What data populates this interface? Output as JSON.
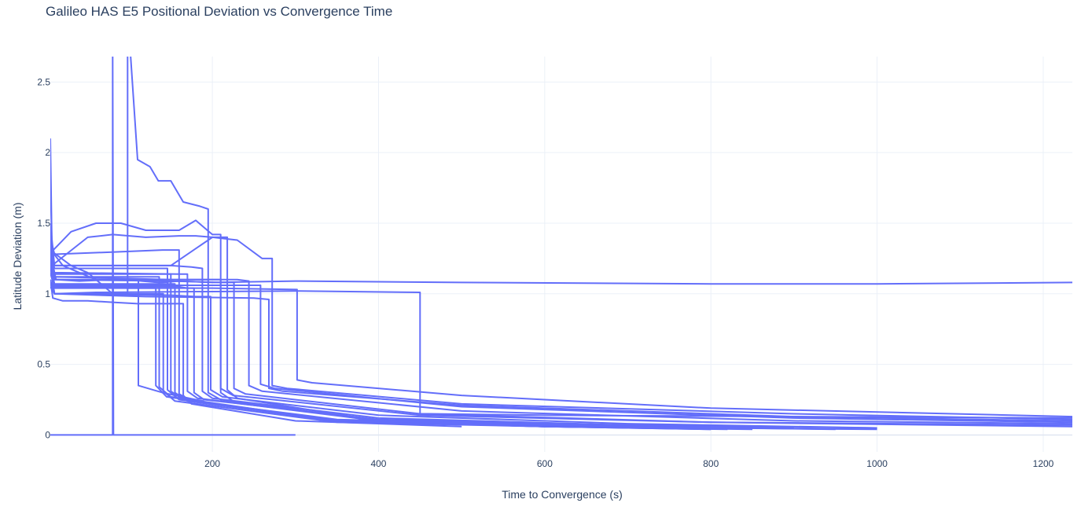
{
  "chart_data": {
    "type": "line",
    "title": "Galileo HAS E5 Positional Deviation vs Convergence Time",
    "xlabel": "Time to Convergence (s)",
    "ylabel": "Latitude Deviation (m)",
    "xlim": [
      5,
      1235
    ],
    "ylim": [
      -0.12,
      2.68
    ],
    "x_ticks": [
      200,
      400,
      600,
      800,
      1000,
      1200
    ],
    "y_ticks": [
      0,
      0.5,
      1,
      1.5,
      2,
      2.5
    ],
    "grid": true,
    "legend": "none",
    "line_color": "#636efa",
    "series": [
      {
        "x": [
          5,
          8,
          12,
          40,
          80,
          100,
          115,
          135,
          140,
          160,
          200,
          300,
          500,
          800,
          1000,
          1235
        ],
        "y": [
          1.45,
          1.2,
          1.1,
          1.09,
          1.1,
          1.1,
          1.09,
          1.08,
          1.08,
          1.09,
          1.08,
          1.09,
          1.08,
          1.07,
          1.07,
          1.08
        ]
      },
      {
        "x": [
          5,
          10,
          60,
          300,
          450,
          450,
          460,
          600,
          900,
          1235
        ],
        "y": [
          1.05,
          1.0,
          1.01,
          1.02,
          1.01,
          0.15,
          0.15,
          0.14,
          0.13,
          0.12
        ]
      },
      {
        "x": [
          5,
          10,
          100,
          200,
          302,
          302,
          320,
          500,
          800,
          1235
        ],
        "y": [
          1.3,
          1.05,
          1.04,
          1.04,
          1.03,
          0.39,
          0.37,
          0.28,
          0.19,
          0.13
        ]
      },
      {
        "x": [
          5,
          10,
          150,
          200,
          230,
          260,
          272,
          272,
          290,
          500,
          900,
          1235
        ],
        "y": [
          1.5,
          1.2,
          1.2,
          1.4,
          1.38,
          1.25,
          1.25,
          0.35,
          0.33,
          0.22,
          0.15,
          0.11
        ]
      },
      {
        "x": [
          5,
          10,
          120,
          250,
          268,
          268,
          285,
          500,
          900,
          1235
        ],
        "y": [
          1.2,
          1.0,
          0.98,
          0.97,
          0.96,
          0.33,
          0.31,
          0.21,
          0.13,
          0.1
        ]
      },
      {
        "x": [
          5,
          10,
          150,
          240,
          258,
          258,
          275,
          500,
          900,
          1235
        ],
        "y": [
          1.15,
          1.06,
          1.06,
          1.06,
          1.06,
          0.36,
          0.33,
          0.2,
          0.12,
          0.09
        ]
      },
      {
        "x": [
          5,
          10,
          150,
          230,
          244,
          244,
          260,
          500,
          900,
          1235
        ],
        "y": [
          1.22,
          1.12,
          1.1,
          1.1,
          1.09,
          0.35,
          0.31,
          0.17,
          0.1,
          0.08
        ]
      },
      {
        "x": [
          5,
          10,
          150,
          210,
          226,
          226,
          240,
          450,
          800,
          1235
        ],
        "y": [
          1.25,
          1.1,
          1.09,
          1.08,
          1.08,
          0.33,
          0.29,
          0.15,
          0.09,
          0.07
        ]
      },
      {
        "x": [
          5,
          10,
          150,
          190,
          210,
          210,
          225,
          450,
          800,
          1235
        ],
        "y": [
          1.3,
          1.1,
          1.1,
          1.1,
          1.1,
          0.33,
          0.28,
          0.14,
          0.09,
          0.06
        ]
      },
      {
        "x": [
          5,
          10,
          150,
          180,
          198,
          198,
          212,
          400,
          700,
          1000
        ],
        "y": [
          1.2,
          1.0,
          0.99,
          0.98,
          0.98,
          0.32,
          0.27,
          0.14,
          0.08,
          0.05
        ]
      },
      {
        "x": [
          5,
          10,
          150,
          175,
          188,
          188,
          200,
          400,
          700,
          1000
        ],
        "y": [
          1.35,
          1.2,
          1.2,
          1.19,
          1.18,
          0.31,
          0.26,
          0.12,
          0.07,
          0.05
        ]
      },
      {
        "x": [
          5,
          10,
          160,
          170,
          178,
          178,
          190,
          400,
          700,
          900
        ],
        "y": [
          1.2,
          1.05,
          1.05,
          1.04,
          1.04,
          0.3,
          0.25,
          0.11,
          0.07,
          0.05
        ]
      },
      {
        "x": [
          5,
          10,
          160,
          165,
          170,
          170,
          182,
          400,
          600,
          800
        ],
        "y": [
          1.3,
          1.15,
          1.14,
          1.14,
          1.14,
          0.31,
          0.26,
          0.1,
          0.07,
          0.05
        ]
      },
      {
        "x": [
          5,
          10,
          100,
          140,
          160,
          160,
          175,
          350,
          600,
          850
        ],
        "y": [
          1.4,
          1.28,
          1.3,
          1.31,
          1.31,
          0.29,
          0.24,
          0.11,
          0.07,
          0.05
        ]
      },
      {
        "x": [
          5,
          10,
          100,
          140,
          155,
          155,
          170,
          350,
          600,
          800
        ],
        "y": [
          1.2,
          1.07,
          1.07,
          1.07,
          1.07,
          0.3,
          0.24,
          0.1,
          0.07,
          0.05
        ]
      },
      {
        "x": [
          5,
          10,
          100,
          140,
          150,
          150,
          165,
          350,
          600,
          850
        ],
        "y": [
          1.25,
          1.14,
          1.14,
          1.14,
          1.14,
          0.31,
          0.25,
          0.1,
          0.07,
          0.05
        ]
      },
      {
        "x": [
          5,
          10,
          100,
          140,
          146,
          146,
          160,
          350,
          600,
          800
        ],
        "y": [
          1.3,
          1.18,
          1.18,
          1.18,
          1.18,
          0.32,
          0.25,
          0.1,
          0.06,
          0.04
        ]
      },
      {
        "x": [
          5,
          10,
          100,
          138,
          141,
          141,
          155,
          350,
          600,
          800
        ],
        "y": [
          1.1,
          1.0,
          1.0,
          1.0,
          1.0,
          0.31,
          0.24,
          0.09,
          0.06,
          0.04
        ]
      },
      {
        "x": [
          5,
          10,
          100,
          133,
          136,
          136,
          150,
          350,
          600,
          750
        ],
        "y": [
          1.25,
          1.12,
          1.12,
          1.12,
          1.12,
          0.34,
          0.27,
          0.1,
          0.06,
          0.05
        ]
      },
      {
        "x": [
          5,
          10,
          100,
          130,
          132,
          132,
          145,
          350,
          600,
          820
        ],
        "y": [
          1.15,
          1.04,
          1.04,
          1.04,
          1.04,
          0.35,
          0.27,
          0.1,
          0.06,
          0.04
        ]
      },
      {
        "x": [
          5,
          7,
          30,
          50,
          80,
          98,
          98,
          110,
          125,
          135,
          150,
          165,
          185,
          195,
          195,
          210,
          400,
          800,
          1000
        ],
        "y": [
          1.85,
          1.3,
          1.2,
          1.15,
          1.0,
          1.0,
          3.0,
          1.95,
          1.9,
          1.8,
          1.8,
          1.65,
          1.62,
          1.6,
          0.3,
          0.25,
          0.1,
          0.05,
          0.04
        ]
      },
      {
        "x": [
          5,
          7,
          30,
          60,
          90,
          120,
          140,
          160,
          180,
          200,
          210,
          210,
          225,
          400,
          600,
          850
        ],
        "y": [
          1.5,
          1.3,
          1.44,
          1.5,
          1.5,
          1.45,
          1.45,
          1.45,
          1.52,
          1.42,
          1.42,
          0.3,
          0.24,
          0.1,
          0.06,
          0.04
        ]
      },
      {
        "x": [
          5,
          7,
          50,
          80,
          120,
          160,
          180,
          200,
          218,
          218,
          230,
          400,
          700,
          950
        ],
        "y": [
          1.4,
          1.2,
          1.4,
          1.42,
          1.4,
          1.41,
          1.41,
          1.4,
          1.4,
          0.32,
          0.26,
          0.1,
          0.06,
          0.04
        ]
      },
      {
        "x": [
          5,
          7,
          20,
          40,
          60,
          90,
          110,
          111,
          111,
          140,
          180,
          190
        ],
        "y": [
          2.1,
          1.3,
          1.2,
          1.15,
          1.1,
          1.1,
          1.1,
          1.1,
          0.35,
          0.3,
          0.25,
          0.24
        ]
      },
      {
        "x": [
          5,
          10,
          60,
          75,
          80,
          80,
          81,
          150,
          200,
          300
        ],
        "y": [
          0,
          0,
          0,
          0,
          0,
          2.7,
          0,
          0,
          0,
          0
        ]
      },
      {
        "x": [
          5,
          8,
          20,
          50,
          80,
          110,
          135,
          155,
          165,
          165,
          175,
          300,
          500
        ],
        "y": [
          1.1,
          0.97,
          0.95,
          0.95,
          0.94,
          0.93,
          0.93,
          0.93,
          0.93,
          0.28,
          0.22,
          0.1,
          0.06
        ]
      }
    ]
  }
}
